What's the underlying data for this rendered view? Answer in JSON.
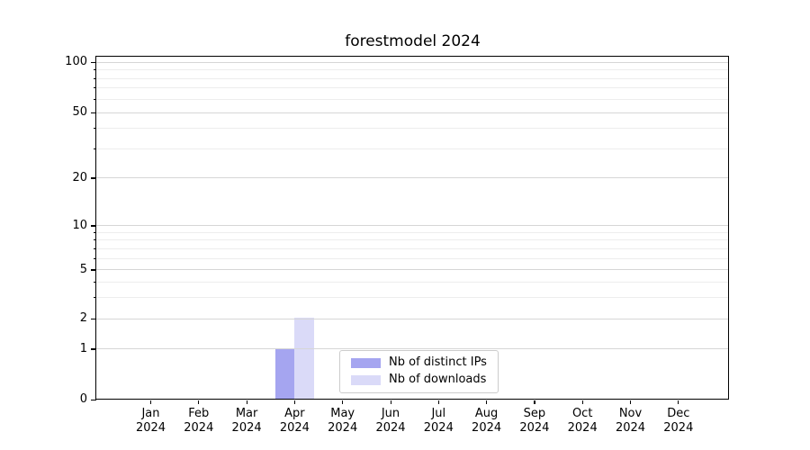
{
  "chart_data": {
    "type": "bar",
    "title": "forestmodel 2024",
    "xlabel": "",
    "ylabel": "",
    "categories": [
      {
        "month": "Jan",
        "year": "2024"
      },
      {
        "month": "Feb",
        "year": "2024"
      },
      {
        "month": "Mar",
        "year": "2024"
      },
      {
        "month": "Apr",
        "year": "2024"
      },
      {
        "month": "May",
        "year": "2024"
      },
      {
        "month": "Jun",
        "year": "2024"
      },
      {
        "month": "Jul",
        "year": "2024"
      },
      {
        "month": "Aug",
        "year": "2024"
      },
      {
        "month": "Sep",
        "year": "2024"
      },
      {
        "month": "Oct",
        "year": "2024"
      },
      {
        "month": "Nov",
        "year": "2024"
      },
      {
        "month": "Dec",
        "year": "2024"
      }
    ],
    "series": [
      {
        "name": "Nb of distinct IPs",
        "color": "#a5a5f0",
        "values": [
          0,
          0,
          0,
          1,
          0,
          0,
          0,
          0,
          0,
          0,
          0,
          0
        ]
      },
      {
        "name": "Nb of downloads",
        "color": "#dadaf8",
        "values": [
          0,
          0,
          0,
          2,
          0,
          0,
          0,
          0,
          0,
          0,
          0,
          0
        ]
      }
    ],
    "yticks": [
      {
        "value": 0,
        "label": "0"
      },
      {
        "value": 1,
        "label": "1"
      },
      {
        "value": 2,
        "label": "2"
      },
      {
        "value": 5,
        "label": "5"
      },
      {
        "value": 10,
        "label": "10"
      },
      {
        "value": 20,
        "label": "20"
      },
      {
        "value": 50,
        "label": "50"
      },
      {
        "value": 100,
        "label": "100"
      }
    ],
    "y_minor_ticks": [
      3,
      4,
      6,
      7,
      8,
      9,
      30,
      40,
      60,
      70,
      80,
      90
    ],
    "y_scale": "symlog",
    "ylim": [
      0,
      108
    ],
    "y_scale_anchors": [
      [
        0,
        0
      ],
      [
        1,
        0.147
      ],
      [
        2,
        0.236
      ],
      [
        5,
        0.378
      ],
      [
        10,
        0.507
      ],
      [
        20,
        0.646
      ],
      [
        50,
        0.837
      ],
      [
        100,
        0.984
      ]
    ],
    "grid": "horizontal",
    "legend_position": "lower center"
  }
}
